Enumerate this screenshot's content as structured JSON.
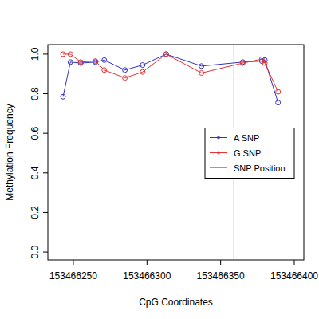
{
  "chart_data": {
    "type": "line",
    "x_label": "CpG Coordinates",
    "y_label": "Methylation Frequency",
    "x": [
      153466243,
      153466248,
      153466255,
      153466265,
      153466271,
      153466285,
      153466297,
      153466313,
      153466337,
      153466365,
      153466378,
      153466380,
      153466389
    ],
    "series": [
      {
        "name": "A SNP",
        "color": "#3232c8",
        "marker": "circle",
        "line_style": "solid",
        "values": [
          0.785,
          0.96,
          0.955,
          0.96,
          0.97,
          0.92,
          0.945,
          1.0,
          0.94,
          0.96,
          0.965,
          0.97,
          0.755
        ]
      },
      {
        "name": "G SNP",
        "color": "#e63232",
        "marker": "circle",
        "line_style": "solid",
        "values": [
          1.0,
          1.0,
          0.96,
          0.965,
          0.92,
          0.88,
          0.91,
          1.0,
          0.905,
          0.955,
          0.975,
          0.955,
          0.81
        ]
      }
    ],
    "vlines": [
      {
        "name": "SNP Position",
        "x": 153466359,
        "color": "#32e632"
      }
    ],
    "xlim": [
      153466232.7,
      153466406.5
    ],
    "ylim": [
      -0.04,
      1.048
    ],
    "xticks": [
      153466250,
      153466300,
      153466350,
      153466400
    ],
    "yticks": [
      {
        "value": 0,
        "label": "0.0"
      },
      {
        "value": 0.2,
        "label": "0.2"
      },
      {
        "value": 0.4,
        "label": "0.4"
      },
      {
        "value": 0.6,
        "label": "0.6"
      },
      {
        "value": 0.8,
        "label": "0.8"
      },
      {
        "value": 1.0,
        "label": "1.0"
      }
    ],
    "legend": "right",
    "grid": false
  }
}
